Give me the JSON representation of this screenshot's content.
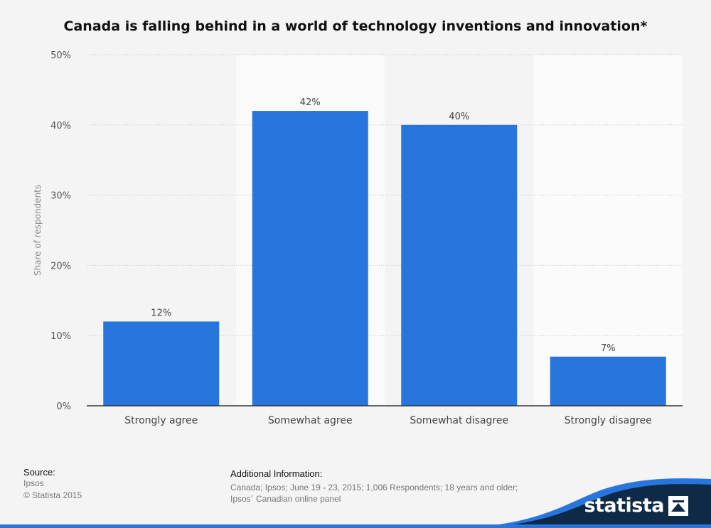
{
  "chart_data": {
    "type": "bar",
    "title": "Canada is falling behind in a world of technology inventions and innovation*",
    "categories": [
      "Strongly agree",
      "Somewhat agree",
      "Somewhat disagree",
      "Strongly disagree"
    ],
    "values": [
      12,
      42,
      40,
      7
    ],
    "value_labels": [
      "12%",
      "42%",
      "40%",
      "7%"
    ],
    "ylabel": "Share of respondents",
    "xlabel": "",
    "ylim": [
      0,
      50
    ],
    "yticks": [
      0,
      10,
      20,
      30,
      40,
      50
    ],
    "ytick_labels": [
      "0%",
      "10%",
      "20%",
      "30%",
      "40%",
      "50%"
    ],
    "grid": true,
    "bar_color": "#2876dd"
  },
  "footer": {
    "source_heading": "Source:",
    "source_lines": [
      "Ipsos",
      "© Statista 2015"
    ],
    "additional_heading": "Additional Information:",
    "additional_text_lines": [
      "Canada; Ipsos; June 19 - 23, 2015; 1,006 Respondents; 18 years and older;",
      "Ipsos´ Canadian online panel"
    ]
  },
  "brand": {
    "name": "statista",
    "dark_color": "#0e2a47",
    "accent_color": "#2876dd"
  }
}
